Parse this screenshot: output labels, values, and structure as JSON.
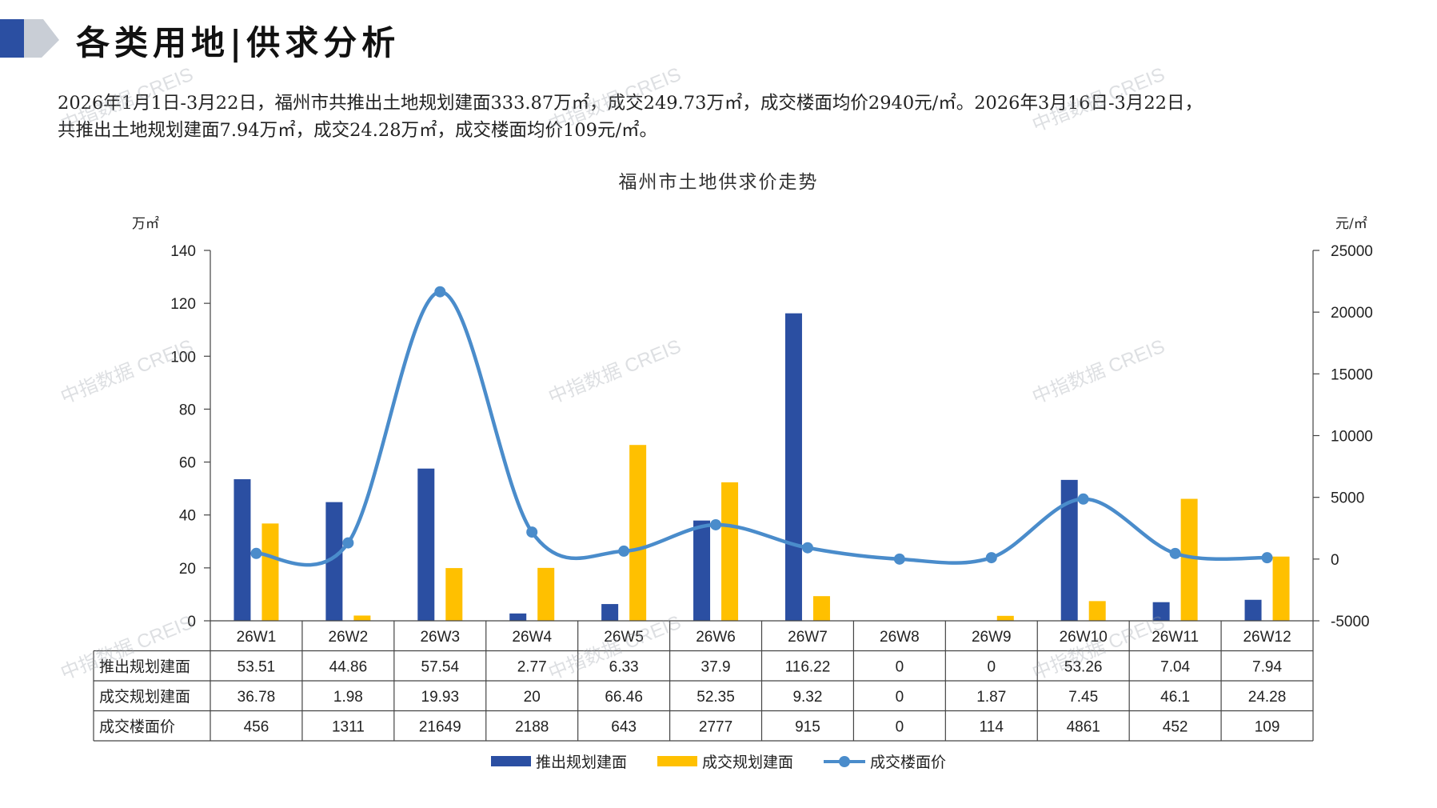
{
  "page": {
    "title": "各类用地|供求分析",
    "summary_line1": "2026年1月1日-3月22日，福州市共推出土地规划建面333.87万㎡，成交249.73万㎡，成交楼面均价2940元/㎡。2026年3月16日-3月22日，",
    "summary_line2": "共推出土地规划建面7.94万㎡，成交24.28万㎡，成交楼面均价109元/㎡。",
    "watermark": "中指数据 CREIS"
  },
  "colors": {
    "supply": "#2B4FA2",
    "deal": "#FFC000",
    "price": "#4A8CCB",
    "grid_axis": "#444444",
    "deco_dark": "#2B4FA2",
    "deco_light": "#C9CED6"
  },
  "chart_data": {
    "type": "bar",
    "title": "福州市土地供求价走势",
    "y_left_unit": "万㎡",
    "y_right_unit": "元/㎡",
    "ylim_left": [
      0,
      140
    ],
    "yticks_left": [
      0,
      20,
      40,
      60,
      80,
      100,
      120,
      140
    ],
    "ylim_right": [
      -5000,
      25000
    ],
    "yticks_right": [
      -5000,
      0,
      5000,
      10000,
      15000,
      20000,
      25000
    ],
    "categories": [
      "26W1",
      "26W2",
      "26W3",
      "26W4",
      "26W5",
      "26W6",
      "26W7",
      "26W8",
      "26W9",
      "26W10",
      "26W11",
      "26W12"
    ],
    "series": [
      {
        "name": "推出规划建面",
        "type": "bar",
        "axis": "left",
        "values": [
          53.51,
          44.86,
          57.54,
          2.77,
          6.33,
          37.9,
          116.22,
          0,
          0,
          53.26,
          7.04,
          7.94
        ],
        "labels": [
          "53.51",
          "44.86",
          "57.54",
          "2.77",
          "6.33",
          "37.9",
          "116.22",
          "0",
          "0",
          "53.26",
          "7.04",
          "7.94"
        ]
      },
      {
        "name": "成交规划建面",
        "type": "bar",
        "axis": "left",
        "values": [
          36.78,
          1.98,
          19.93,
          20,
          66.46,
          52.35,
          9.32,
          0,
          1.87,
          7.45,
          46.1,
          24.28
        ],
        "labels": [
          "36.78",
          "1.98",
          "19.93",
          "20",
          "66.46",
          "52.35",
          "9.32",
          "0",
          "1.87",
          "7.45",
          "46.1",
          "24.28"
        ]
      },
      {
        "name": "成交楼面价",
        "type": "line",
        "axis": "right",
        "values": [
          456,
          1311,
          21649,
          2188,
          643,
          2777,
          915,
          0,
          114,
          4861,
          452,
          109
        ],
        "labels": [
          "456",
          "1311",
          "21649",
          "2188",
          "643",
          "2777",
          "915",
          "0",
          "114",
          "4861",
          "452",
          "109"
        ]
      }
    ],
    "table_row_labels": [
      "推出规划建面",
      "成交规划建面",
      "成交楼面价"
    ],
    "legend": [
      "推出规划建面",
      "成交规划建面",
      "成交楼面价"
    ],
    "legend_position": "bottom",
    "grid": false
  }
}
